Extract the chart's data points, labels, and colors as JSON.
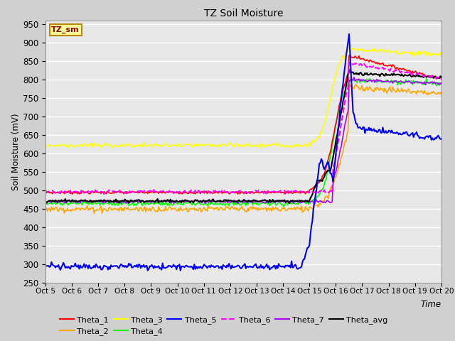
{
  "title": "TZ Soil Moisture",
  "ylabel": "Soil Moisture (mV)",
  "xlabel_text": "Time",
  "label_box": "TZ_sm",
  "ylim": [
    250,
    960
  ],
  "yticks": [
    250,
    300,
    350,
    400,
    450,
    500,
    550,
    600,
    650,
    700,
    750,
    800,
    850,
    900,
    950
  ],
  "xtick_labels": [
    "Oct 5",
    "Oct 6",
    "Oct 7",
    "Oct 8",
    "Oct 9",
    "Oct 10",
    "Oct 11",
    "Oct 12",
    "Oct 13",
    "Oct 14",
    "Oct 15",
    "Oct 16",
    "Oct 17",
    "Oct 18",
    "Oct 19",
    "Oct 20"
  ],
  "xtick_positions": [
    0,
    1,
    2,
    3,
    4,
    5,
    6,
    7,
    8,
    9,
    10,
    11,
    12,
    13,
    14,
    15
  ],
  "x_start": 0,
  "x_end": 15,
  "series": {
    "Theta_1": {
      "color": "#FF0000",
      "style": "-",
      "lw": 1.2
    },
    "Theta_2": {
      "color": "#FFA500",
      "style": "-",
      "lw": 1.2
    },
    "Theta_3": {
      "color": "#FFFF00",
      "style": "-",
      "lw": 1.2
    },
    "Theta_4": {
      "color": "#00FF00",
      "style": "-",
      "lw": 1.2
    },
    "Theta_5": {
      "color": "#0000FF",
      "style": "-",
      "lw": 1.5
    },
    "Theta_6": {
      "color": "#FF00FF",
      "style": "--",
      "lw": 1.5
    },
    "Theta_7": {
      "color": "#AA00FF",
      "style": "-",
      "lw": 1.2
    },
    "Theta_avg": {
      "color": "#000000",
      "style": "-",
      "lw": 1.5
    }
  },
  "background_color": "#E8E8E8",
  "fig_facecolor": "#D0D0D0",
  "grid_color": "#FFFFFF",
  "n_points": 400,
  "event_x": 10.0,
  "peak_x": 11.5,
  "seed": 7
}
